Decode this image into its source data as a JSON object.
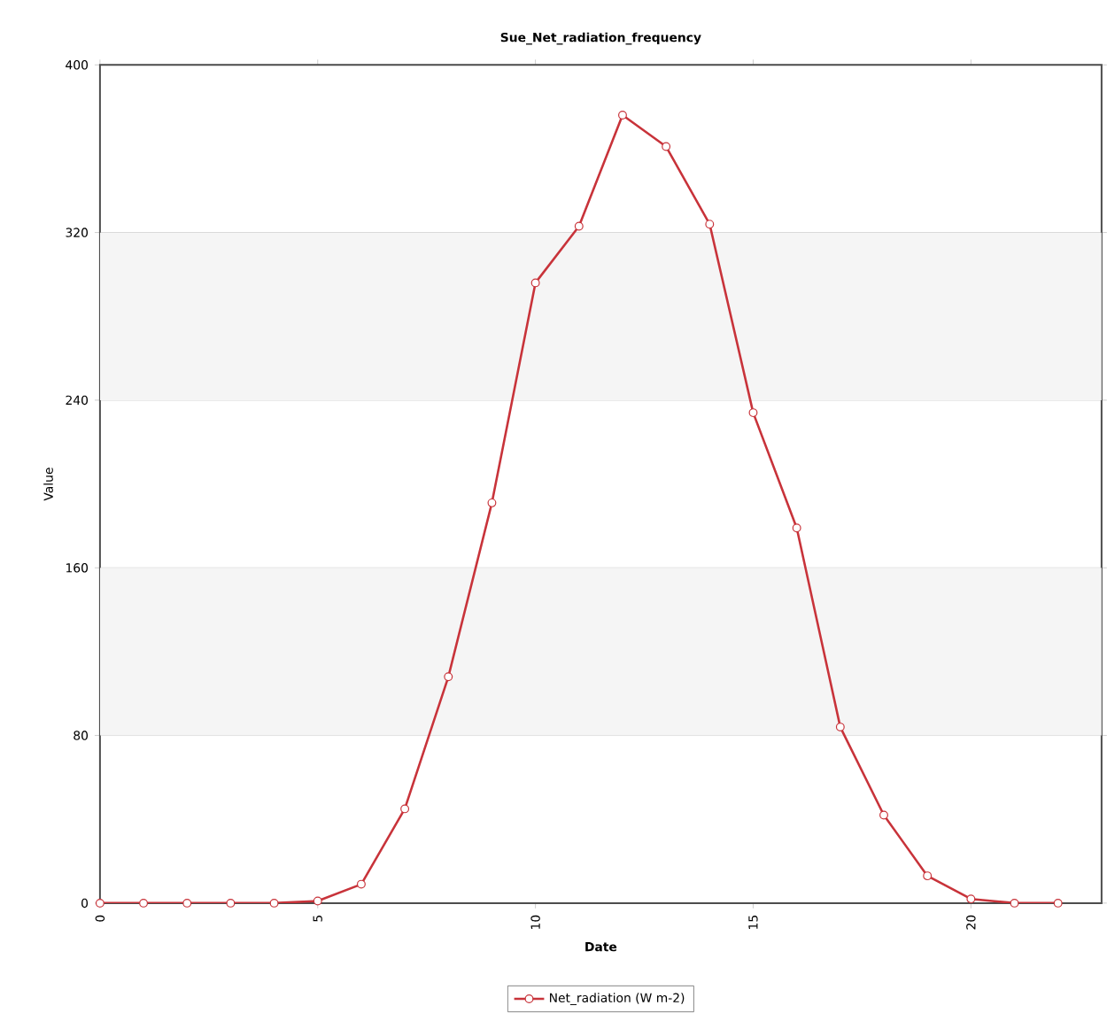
{
  "chart_data": {
    "type": "line",
    "title": "Sue_Net_radiation_frequency",
    "xlabel": "Date",
    "ylabel": "Value",
    "x": [
      0,
      1,
      2,
      3,
      4,
      5,
      6,
      7,
      8,
      9,
      10,
      11,
      12,
      13,
      14,
      15,
      16,
      17,
      18,
      19,
      20,
      21,
      22
    ],
    "series": [
      {
        "name": "Net_radiation (W m-2)",
        "color": "#c8333a",
        "values": [
          0,
          0,
          0,
          0,
          0,
          1,
          9,
          45,
          108,
          191,
          296,
          323,
          376,
          361,
          324,
          234,
          179,
          84,
          42,
          13,
          2,
          0,
          0
        ]
      }
    ],
    "xlim": [
      0,
      23
    ],
    "ylim": [
      0,
      400
    ],
    "xticks": [
      0,
      5,
      10,
      15,
      20
    ],
    "yticks": [
      0,
      80,
      160,
      240,
      320,
      400
    ],
    "bands": [
      {
        "axis": "y",
        "from": 80,
        "to": 160,
        "color": "#f5f5f5"
      },
      {
        "axis": "y",
        "from": 240,
        "to": 320,
        "color": "#f5f5f5"
      }
    ],
    "grid": "y",
    "legend": "bottom",
    "marker": "circle",
    "line_style": "solid"
  }
}
